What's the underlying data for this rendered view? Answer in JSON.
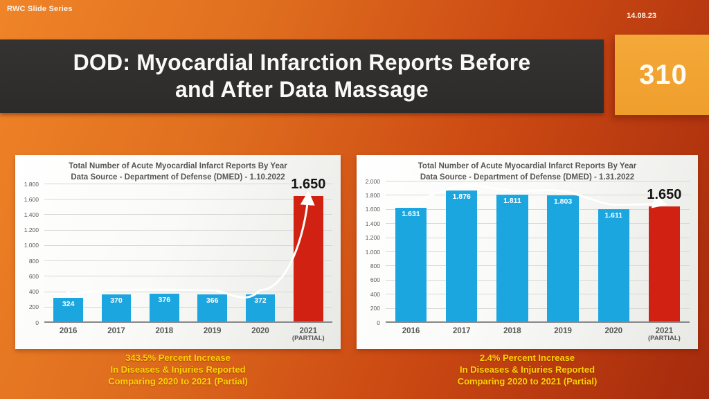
{
  "slide": {
    "series_label": "RWC Slide Series",
    "date": "14.08.23",
    "title": "DOD: Myocardial Infarction Reports Before\nand After Data Massage",
    "slide_number": "310",
    "colors": {
      "background_orange": "#e06f1f",
      "background_dark_red": "#a52a0d",
      "banner_dark": "#2c2b2a",
      "badge_amber": "#f0a232",
      "bar_blue": "#1ba6e0",
      "bar_red": "#d02112",
      "caption_yellow": "#ffd400",
      "arrow_white": "#ffffff"
    }
  },
  "chart_data": [
    {
      "type": "bar",
      "title": "Total Number of Acute Myocardial Infarct Reports By Year",
      "subtitle": "Data Source - Department of Defense (DMED) - 1.10.2022",
      "categories": [
        "2016",
        "2017",
        "2018",
        "2019",
        "2020",
        "2021\n(PARTIAL)"
      ],
      "values": [
        324,
        370,
        376,
        366,
        372,
        1650
      ],
      "bar_labels": [
        "324",
        "370",
        "376",
        "366",
        "372",
        ""
      ],
      "bar_colors": [
        "#1ba6e0",
        "#1ba6e0",
        "#1ba6e0",
        "#1ba6e0",
        "#1ba6e0",
        "#d02112"
      ],
      "annotation": "1.650",
      "ylim": [
        0,
        1800
      ],
      "ytick_values": [
        0,
        200,
        400,
        600,
        800,
        1000,
        1200,
        1400,
        1600,
        1800
      ],
      "ytick_labels": [
        "0",
        "200",
        "400",
        "600",
        "800",
        "1.000",
        "1.200",
        "1.400",
        "1.600",
        "1.800"
      ],
      "grid": true,
      "legend": "none",
      "caption": "343.5% Percent Increase\nIn Diseases & Injuries Reported\nComparing 2020 to 2021 (Partial)"
    },
    {
      "type": "bar",
      "title": "Total Number of Acute Myocardial Infarct Reports By Year",
      "subtitle": "Data Source - Department of Defense (DMED) - 1.31.2022",
      "categories": [
        "2016",
        "2017",
        "2018",
        "2019",
        "2020",
        "2021\n(PARTIAL)"
      ],
      "values": [
        1631,
        1876,
        1811,
        1803,
        1611,
        1650
      ],
      "bar_labels": [
        "1.631",
        "1.876",
        "1.811",
        "1.803",
        "1.611",
        ""
      ],
      "bar_colors": [
        "#1ba6e0",
        "#1ba6e0",
        "#1ba6e0",
        "#1ba6e0",
        "#1ba6e0",
        "#d02112"
      ],
      "annotation": "1.650",
      "ylim": [
        0,
        2000
      ],
      "ytick_values": [
        0,
        200,
        400,
        600,
        800,
        1000,
        1200,
        1400,
        1600,
        1800,
        2000
      ],
      "ytick_labels": [
        "0",
        "200",
        "400",
        "600",
        "800",
        "1.000",
        "1.200",
        "1.400",
        "1.600",
        "1.800",
        "2.000"
      ],
      "grid": true,
      "legend": "none",
      "caption": "2.4% Percent Increase\nIn Diseases & Injuries Reported\nComparing 2020 to 2021 (Partial)"
    }
  ]
}
